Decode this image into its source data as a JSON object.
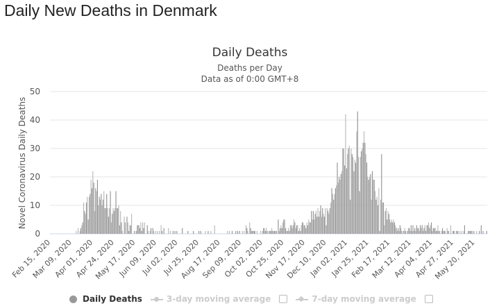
{
  "page": {
    "title": "Daily New Deaths in Denmark"
  },
  "chart_data": {
    "type": "bar",
    "title": "Daily Deaths",
    "subtitle": "Deaths per Day",
    "subtitle2": "Data as of 0:00 GMT+8",
    "ylabel": "Novel Coronavirus Daily Deaths",
    "xlabel": "",
    "ylim": [
      0,
      50
    ],
    "yticks": [
      0,
      10,
      20,
      30,
      40,
      50
    ],
    "grid": true,
    "bar_color": "#999999",
    "x_tick_labels": [
      "Feb 15, 2020",
      "Mar 09, 2020",
      "Apr 01, 2020",
      "Apr 24, 2020",
      "May 17, 2020",
      "Jun 09, 2020",
      "Jul 02, 2020",
      "Jul 25, 2020",
      "Aug 17, 2020",
      "Sep 09, 2020",
      "Oct 02, 2020",
      "Oct 25, 2020",
      "Nov 17, 2020",
      "Dec 10, 2020",
      "Jan 02, 2021",
      "Jan 25, 2021",
      "Feb 17, 2021",
      "Mar 12, 2021",
      "Apr 04, 2021",
      "Apr 27, 2021",
      "May 20, 2021"
    ],
    "series": [
      {
        "name": "Daily Deaths",
        "values": [
          0,
          0,
          0,
          0,
          0,
          0,
          0,
          0,
          0,
          0,
          0,
          0,
          0,
          0,
          0,
          0,
          0,
          0,
          0,
          0,
          0,
          0,
          0,
          0,
          0,
          0,
          0,
          0,
          1,
          0,
          2,
          0,
          1,
          2,
          3,
          4,
          11,
          8,
          7,
          11,
          13,
          5,
          13,
          14,
          19,
          16,
          22,
          18,
          8,
          16,
          15,
          19,
          10,
          13,
          12,
          14,
          10,
          12,
          15,
          9,
          9,
          14,
          9,
          6,
          9,
          15,
          4,
          7,
          9,
          8,
          9,
          15,
          9,
          9,
          10,
          3,
          8,
          4,
          1,
          0,
          6,
          4,
          0,
          6,
          4,
          1,
          3,
          3,
          7,
          0,
          0,
          1,
          0,
          1,
          3,
          3,
          3,
          2,
          4,
          1,
          4,
          2,
          4,
          0,
          0,
          3,
          1,
          0,
          1,
          2,
          0,
          2,
          1,
          0,
          1,
          0,
          1,
          0,
          1,
          0,
          3,
          1,
          0,
          2,
          0,
          0,
          0,
          0,
          2,
          0,
          1,
          0,
          0,
          1,
          0,
          1,
          0,
          1,
          0,
          0,
          0,
          0,
          0,
          2,
          0,
          0,
          0,
          0,
          0,
          1,
          0,
          0,
          0,
          0,
          0,
          1,
          0,
          0,
          0,
          0,
          0,
          1,
          0,
          1,
          0,
          0,
          0,
          0,
          1,
          0,
          0,
          1,
          0,
          0,
          1,
          0,
          0,
          0,
          3,
          0,
          0,
          0,
          0,
          0,
          0,
          0,
          0,
          0,
          0,
          0,
          0,
          0,
          1,
          0,
          1,
          0,
          0,
          1,
          0,
          0,
          0,
          1,
          0,
          1,
          0,
          1,
          0,
          0,
          1,
          0,
          1,
          0,
          3,
          2,
          1,
          0,
          4,
          2,
          1,
          1,
          1,
          1,
          1,
          0,
          1,
          0,
          0,
          0,
          1,
          0,
          1,
          2,
          2,
          1,
          2,
          1,
          0,
          1,
          1,
          1,
          2,
          1,
          1,
          1,
          1,
          1,
          0,
          5,
          1,
          2,
          3,
          2,
          4,
          5,
          5,
          2,
          1,
          1,
          2,
          1,
          3,
          3,
          2,
          3,
          5,
          4,
          2,
          3,
          3,
          1,
          2,
          1,
          3,
          4,
          4,
          3,
          3,
          2,
          4,
          3,
          5,
          4,
          4,
          8,
          5,
          8,
          5,
          7,
          8,
          6,
          9,
          6,
          8,
          10,
          6,
          9,
          7,
          6,
          9,
          3,
          9,
          8,
          7,
          9,
          11,
          16,
          14,
          12,
          14,
          16,
          17,
          25,
          18,
          20,
          19,
          21,
          22,
          30,
          30,
          24,
          42,
          23,
          28,
          30,
          31,
          12,
          30,
          28,
          27,
          22,
          26,
          25,
          36,
          43,
          27,
          15,
          27,
          29,
          30,
          32,
          36,
          32,
          28,
          25,
          20,
          19,
          20,
          21,
          12,
          22,
          19,
          19,
          15,
          12,
          13,
          10,
          16,
          1,
          12,
          28,
          11,
          11,
          3,
          8,
          9,
          5,
          8,
          7,
          5,
          4,
          5,
          4,
          5,
          4,
          3,
          2,
          1,
          2,
          1,
          3,
          2,
          1,
          0,
          1,
          2,
          1,
          0,
          1,
          2,
          2,
          1,
          3,
          1,
          3,
          1,
          2,
          1,
          3,
          2,
          2,
          1,
          3,
          2,
          3,
          1,
          2,
          3,
          1,
          3,
          3,
          4,
          2,
          3,
          4,
          1,
          2,
          2,
          2,
          1,
          1,
          3,
          1,
          1,
          0,
          1,
          2,
          1,
          1,
          1,
          0,
          2,
          1,
          1,
          0,
          3,
          0,
          1,
          1,
          1,
          0,
          1,
          1,
          1,
          0,
          1,
          0,
          1,
          0,
          1,
          3,
          0,
          0,
          0,
          1,
          1,
          1,
          1,
          1,
          0,
          1,
          0,
          0,
          1,
          0,
          0,
          1,
          0,
          3,
          0,
          1,
          0,
          0,
          0,
          1
        ]
      }
    ],
    "legend": {
      "placement": "bottom",
      "items": [
        {
          "label": "Daily Deaths",
          "color": "#999999",
          "enabled": true
        },
        {
          "label": "3-day moving average",
          "color": "#cccccc",
          "enabled": false
        },
        {
          "label": "7-day moving average",
          "color": "#cccccc",
          "enabled": false
        }
      ]
    }
  }
}
